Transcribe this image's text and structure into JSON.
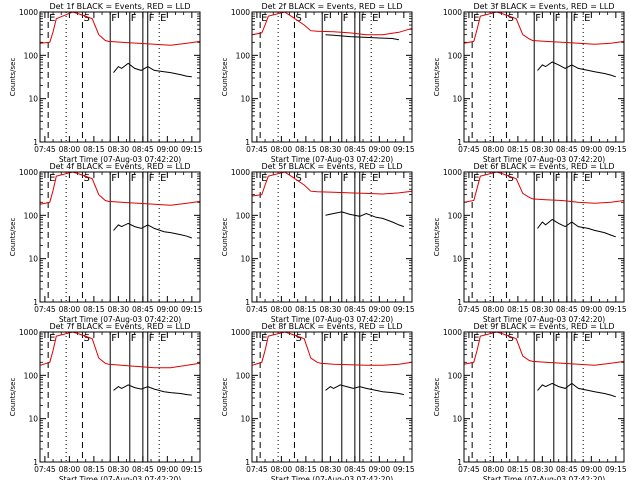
{
  "figure": {
    "ylabel": "Counts/sec",
    "xlabel": "Start Time (07-Aug-03 07:42:20)",
    "x_tick_labels": [
      "07:45",
      "08:00",
      "08:15",
      "08:30",
      "08:45",
      "09:00",
      "09:15"
    ],
    "y_tick_labels": [
      "1",
      "10",
      "100",
      "1000"
    ],
    "series_colors": {
      "events": "#000000",
      "lld": "#e00000"
    },
    "marker_letters": [
      "E",
      "S",
      "F",
      "F",
      "F",
      "E"
    ]
  },
  "chart_data": [
    {
      "type": "line",
      "title": "Det 1f BLACK = Events, RED = LLD",
      "ylim": [
        1,
        1000
      ],
      "yscale": "log",
      "xlim_minutes": [
        0,
        98
      ],
      "series": [
        {
          "name": "Events",
          "x": [
            45,
            48,
            50,
            54,
            58,
            62,
            66,
            70,
            76,
            80,
            86,
            90,
            93
          ],
          "y": [
            40,
            55,
            50,
            65,
            50,
            45,
            55,
            45,
            42,
            40,
            36,
            33,
            32
          ]
        },
        {
          "name": "LLD",
          "x": [
            0,
            6,
            8,
            10,
            20,
            24,
            32,
            36,
            40,
            42,
            50,
            60,
            70,
            80,
            90,
            98
          ],
          "y": [
            190,
            200,
            350,
            700,
            1000,
            900,
            700,
            300,
            220,
            210,
            200,
            190,
            180,
            170,
            190,
            210
          ]
        }
      ]
    },
    {
      "type": "line",
      "title": "Det 2f BLACK = Events, RED = LLD",
      "ylim": [
        1,
        1000
      ],
      "yscale": "log",
      "xlim_minutes": [
        0,
        98
      ],
      "series": [
        {
          "name": "Events",
          "x": [
            45,
            50,
            60,
            70,
            80,
            86,
            90
          ],
          "y": [
            300,
            290,
            270,
            260,
            250,
            245,
            230
          ]
        },
        {
          "name": "LLD",
          "x": [
            0,
            6,
            8,
            10,
            20,
            24,
            32,
            36,
            40,
            50,
            60,
            70,
            80,
            90,
            98
          ],
          "y": [
            300,
            330,
            500,
            800,
            1000,
            800,
            500,
            370,
            360,
            350,
            330,
            300,
            300,
            340,
            420
          ]
        }
      ]
    },
    {
      "type": "line",
      "title": "Det 3f BLACK = Events, RED = LLD",
      "ylim": [
        1,
        1000
      ],
      "yscale": "log",
      "xlim_minutes": [
        0,
        98
      ],
      "series": [
        {
          "name": "Events",
          "x": [
            45,
            48,
            50,
            54,
            58,
            62,
            66,
            70,
            76,
            80,
            86,
            90,
            93
          ],
          "y": [
            45,
            60,
            55,
            70,
            60,
            50,
            60,
            50,
            45,
            42,
            38,
            35,
            32
          ]
        },
        {
          "name": "LLD",
          "x": [
            0,
            6,
            8,
            10,
            20,
            24,
            32,
            36,
            40,
            42,
            50,
            60,
            70,
            80,
            90,
            98
          ],
          "y": [
            190,
            210,
            400,
            800,
            1000,
            900,
            700,
            300,
            240,
            220,
            210,
            200,
            190,
            180,
            190,
            210
          ]
        }
      ]
    },
    {
      "type": "line",
      "title": "Det 4f BLACK = Events, RED = LLD",
      "ylim": [
        1,
        1000
      ],
      "yscale": "log",
      "xlim_minutes": [
        0,
        98
      ],
      "series": [
        {
          "name": "Events",
          "x": [
            45,
            48,
            50,
            54,
            58,
            62,
            66,
            70,
            76,
            80,
            86,
            90,
            93
          ],
          "y": [
            45,
            60,
            55,
            65,
            55,
            50,
            60,
            50,
            42,
            40,
            36,
            33,
            30
          ]
        },
        {
          "name": "LLD",
          "x": [
            0,
            6,
            8,
            10,
            20,
            24,
            32,
            36,
            40,
            42,
            50,
            60,
            70,
            80,
            90,
            98
          ],
          "y": [
            180,
            200,
            380,
            800,
            1000,
            900,
            700,
            300,
            220,
            210,
            200,
            190,
            180,
            170,
            190,
            210
          ]
        }
      ]
    },
    {
      "type": "line",
      "title": "Det 5f BLACK = Events, RED = LLD",
      "ylim": [
        1,
        1000
      ],
      "yscale": "log",
      "xlim_minutes": [
        0,
        98
      ],
      "series": [
        {
          "name": "Events",
          "x": [
            45,
            50,
            55,
            60,
            66,
            70,
            76,
            80,
            86,
            90,
            93
          ],
          "y": [
            100,
            110,
            120,
            105,
            95,
            110,
            90,
            85,
            70,
            60,
            55
          ]
        },
        {
          "name": "LLD",
          "x": [
            0,
            6,
            8,
            10,
            20,
            24,
            32,
            36,
            40,
            50,
            60,
            70,
            80,
            90,
            98
          ],
          "y": [
            280,
            300,
            500,
            800,
            1000,
            800,
            500,
            360,
            350,
            340,
            330,
            320,
            310,
            330,
            360
          ]
        }
      ]
    },
    {
      "type": "line",
      "title": "Det 6f BLACK = Events, RED = LLD",
      "ylim": [
        1,
        1000
      ],
      "yscale": "log",
      "xlim_minutes": [
        0,
        98
      ],
      "series": [
        {
          "name": "Events",
          "x": [
            45,
            48,
            50,
            54,
            58,
            62,
            66,
            70,
            76,
            80,
            86,
            90,
            93
          ],
          "y": [
            50,
            70,
            60,
            80,
            65,
            55,
            70,
            55,
            50,
            45,
            40,
            35,
            32
          ]
        },
        {
          "name": "LLD",
          "x": [
            0,
            6,
            8,
            10,
            20,
            24,
            32,
            36,
            40,
            42,
            50,
            60,
            70,
            80,
            90,
            98
          ],
          "y": [
            200,
            220,
            420,
            800,
            1000,
            900,
            700,
            320,
            260,
            240,
            230,
            220,
            200,
            190,
            200,
            220
          ]
        }
      ]
    },
    {
      "type": "line",
      "title": "Det 7f BLACK = Events, RED = LLD",
      "ylim": [
        1,
        1000
      ],
      "yscale": "log",
      "xlim_minutes": [
        0,
        98
      ],
      "series": [
        {
          "name": "Events",
          "x": [
            45,
            48,
            50,
            54,
            58,
            62,
            66,
            70,
            76,
            80,
            86,
            90,
            93
          ],
          "y": [
            45,
            55,
            50,
            60,
            52,
            48,
            55,
            48,
            42,
            40,
            38,
            36,
            35
          ]
        },
        {
          "name": "LLD",
          "x": [
            0,
            6,
            8,
            10,
            20,
            24,
            32,
            36,
            40,
            42,
            50,
            60,
            70,
            80,
            90,
            98
          ],
          "y": [
            170,
            200,
            380,
            800,
            1000,
            900,
            700,
            250,
            190,
            180,
            170,
            160,
            150,
            150,
            170,
            190
          ]
        }
      ]
    },
    {
      "type": "line",
      "title": "Det 8f BLACK = Events, RED = LLD",
      "ylim": [
        1,
        1000
      ],
      "yscale": "log",
      "xlim_minutes": [
        0,
        98
      ],
      "series": [
        {
          "name": "Events",
          "x": [
            45,
            48,
            50,
            54,
            58,
            62,
            66,
            70,
            76,
            80,
            86,
            90,
            93
          ],
          "y": [
            45,
            55,
            50,
            60,
            55,
            50,
            55,
            50,
            45,
            42,
            40,
            38,
            36
          ]
        },
        {
          "name": "LLD",
          "x": [
            0,
            6,
            8,
            10,
            20,
            24,
            32,
            36,
            40,
            42,
            50,
            60,
            70,
            80,
            90,
            98
          ],
          "y": [
            170,
            200,
            380,
            800,
            1000,
            900,
            700,
            250,
            200,
            190,
            180,
            175,
            170,
            170,
            180,
            200
          ]
        }
      ]
    },
    {
      "type": "line",
      "title": "Det 9f BLACK = Events, RED = LLD",
      "ylim": [
        1,
        1000
      ],
      "yscale": "log",
      "xlim_minutes": [
        0,
        98
      ],
      "series": [
        {
          "name": "Events",
          "x": [
            45,
            48,
            50,
            54,
            58,
            62,
            66,
            70,
            76,
            80,
            86,
            90,
            93
          ],
          "y": [
            45,
            60,
            55,
            65,
            55,
            50,
            65,
            50,
            45,
            42,
            38,
            35,
            32
          ]
        },
        {
          "name": "LLD",
          "x": [
            0,
            6,
            8,
            10,
            20,
            24,
            32,
            36,
            40,
            42,
            50,
            60,
            70,
            80,
            90,
            98
          ],
          "y": [
            180,
            200,
            380,
            800,
            1000,
            900,
            700,
            280,
            220,
            210,
            200,
            190,
            180,
            170,
            190,
            210
          ]
        }
      ]
    }
  ]
}
